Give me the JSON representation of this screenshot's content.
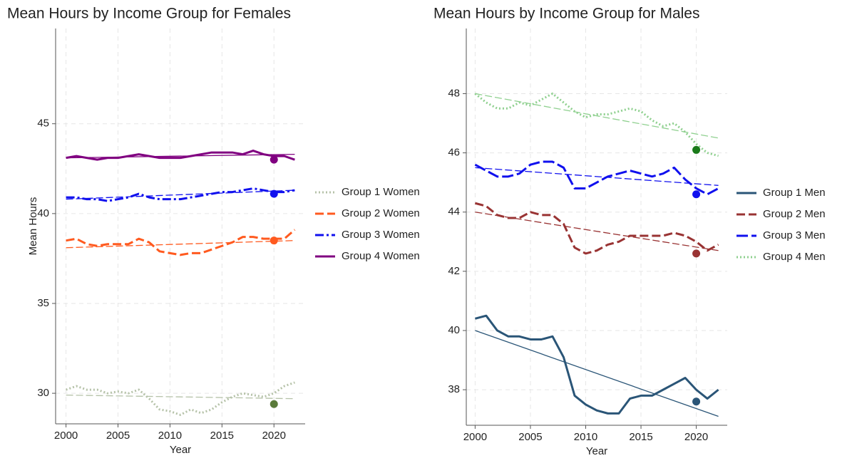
{
  "chart_data": [
    {
      "type": "line",
      "title": "Mean Hours by Income Group for Females",
      "ylabel": "Mean Hours",
      "xlabel": "Year",
      "x": [
        2000,
        2001,
        2002,
        2003,
        2004,
        2005,
        2006,
        2007,
        2008,
        2009,
        2010,
        2011,
        2012,
        2013,
        2014,
        2015,
        2016,
        2017,
        2018,
        2019,
        2020,
        2021,
        2022
      ],
      "xlim": [
        1999,
        2023
      ],
      "xticks": [
        2000,
        2005,
        2010,
        2015,
        2020
      ],
      "ylim": [
        28.3,
        50.3
      ],
      "yticks": [
        30,
        35,
        40,
        45
      ],
      "grid": true,
      "legend": "right",
      "series": [
        {
          "name": "Group 1 Women",
          "color": "#b5c2a8",
          "line_style": "dotted",
          "values": [
            30.2,
            30.4,
            30.2,
            30.2,
            30.0,
            30.1,
            30.0,
            30.2,
            29.7,
            29.1,
            29.0,
            28.8,
            29.1,
            28.9,
            29.1,
            29.5,
            29.8,
            30.0,
            29.9,
            29.8,
            30.0,
            30.4,
            30.6
          ],
          "trend": {
            "x": [
              2000,
              2022
            ],
            "values": [
              29.9,
              29.7
            ]
          },
          "marker": {
            "x": 2020,
            "value": 29.4,
            "color": "#5a7a3a"
          }
        },
        {
          "name": "Group 2 Women",
          "color": "#ff5a1f",
          "line_style": "dashed",
          "values": [
            38.5,
            38.6,
            38.3,
            38.2,
            38.3,
            38.3,
            38.3,
            38.6,
            38.4,
            37.9,
            37.8,
            37.7,
            37.8,
            37.8,
            38.0,
            38.2,
            38.4,
            38.7,
            38.7,
            38.6,
            38.6,
            38.6,
            39.1
          ],
          "trend": {
            "x": [
              2000,
              2022
            ],
            "values": [
              38.1,
              38.5
            ]
          },
          "marker": {
            "x": 2020,
            "value": 38.5,
            "color": "#ff5a1f"
          }
        },
        {
          "name": "Group 3 Women",
          "color": "#1010ee",
          "line_style": "dashdot",
          "values": [
            40.9,
            40.9,
            40.8,
            40.8,
            40.7,
            40.8,
            40.9,
            41.1,
            40.9,
            40.8,
            40.8,
            40.8,
            40.9,
            41.0,
            41.1,
            41.2,
            41.2,
            41.3,
            41.4,
            41.3,
            41.2,
            41.2,
            41.3
          ],
          "trend": {
            "x": [
              2000,
              2022
            ],
            "values": [
              40.8,
              41.3
            ]
          },
          "marker": {
            "x": 2020,
            "value": 41.1,
            "color": "#1010ee"
          }
        },
        {
          "name": "Group 4 Women",
          "color": "#800080",
          "line_style": "solid",
          "values": [
            43.1,
            43.2,
            43.1,
            43.0,
            43.1,
            43.1,
            43.2,
            43.3,
            43.2,
            43.1,
            43.1,
            43.1,
            43.2,
            43.3,
            43.4,
            43.4,
            43.4,
            43.3,
            43.5,
            43.3,
            43.2,
            43.2,
            43.0
          ],
          "trend": {
            "x": [
              2000,
              2022
            ],
            "values": [
              43.1,
              43.3
            ]
          },
          "marker": {
            "x": 2020,
            "value": 43.0,
            "color": "#800080"
          }
        }
      ]
    },
    {
      "type": "line",
      "title": "Mean Hours by Income Group for Males",
      "xlabel": "Year",
      "x": [
        2000,
        2001,
        2002,
        2003,
        2004,
        2005,
        2006,
        2007,
        2008,
        2009,
        2010,
        2011,
        2012,
        2013,
        2014,
        2015,
        2016,
        2017,
        2018,
        2019,
        2020,
        2021,
        2022
      ],
      "xlim": [
        1999.2,
        2022.8
      ],
      "xticks": [
        2000,
        2005,
        2010,
        2015,
        2020
      ],
      "ylim": [
        36.8,
        50.2
      ],
      "yticks": [
        38,
        40,
        42,
        44,
        46,
        48
      ],
      "grid": true,
      "legend": "right",
      "series": [
        {
          "name": "Group 1 Men",
          "color": "#2a5577",
          "line_style": "solid",
          "values": [
            40.4,
            40.5,
            40.0,
            39.8,
            39.8,
            39.7,
            39.7,
            39.8,
            39.1,
            37.8,
            37.5,
            37.3,
            37.2,
            37.2,
            37.7,
            37.8,
            37.8,
            38.0,
            38.2,
            38.4,
            38.0,
            37.7,
            38.0
          ],
          "trend": {
            "x": [
              2000,
              2022
            ],
            "values": [
              40.0,
              37.1
            ]
          },
          "marker": {
            "x": 2020,
            "value": 37.6,
            "color": "#2a5577"
          }
        },
        {
          "name": "Group 2 Men",
          "color": "#993333",
          "line_style": "dashed",
          "values": [
            44.3,
            44.2,
            43.9,
            43.8,
            43.8,
            44.0,
            43.9,
            43.9,
            43.6,
            42.8,
            42.6,
            42.7,
            42.9,
            43.0,
            43.2,
            43.2,
            43.2,
            43.2,
            43.3,
            43.2,
            43.0,
            42.7,
            42.9
          ],
          "trend": {
            "x": [
              2000,
              2022
            ],
            "values": [
              44.0,
              42.7
            ]
          },
          "marker": {
            "x": 2020,
            "value": 42.6,
            "color": "#993333"
          }
        },
        {
          "name": "Group 3 Men",
          "color": "#1010ee",
          "line_style": "longdash",
          "values": [
            45.6,
            45.4,
            45.2,
            45.2,
            45.3,
            45.6,
            45.7,
            45.7,
            45.5,
            44.8,
            44.8,
            45.0,
            45.2,
            45.3,
            45.4,
            45.3,
            45.2,
            45.3,
            45.5,
            45.1,
            44.8,
            44.6,
            44.8
          ],
          "trend": {
            "x": [
              2000,
              2022
            ],
            "values": [
              45.5,
              44.9
            ]
          },
          "marker": {
            "x": 2020,
            "value": 44.6,
            "color": "#1010ee"
          }
        },
        {
          "name": "Group 4 Men",
          "color": "#8fd08f",
          "line_style": "dotted",
          "values": [
            48.0,
            47.7,
            47.5,
            47.5,
            47.7,
            47.6,
            47.8,
            48.0,
            47.7,
            47.4,
            47.2,
            47.3,
            47.3,
            47.4,
            47.5,
            47.4,
            47.1,
            46.9,
            47.0,
            46.7,
            46.3,
            46.0,
            45.9
          ],
          "trend": {
            "x": [
              2000,
              2022
            ],
            "values": [
              48.0,
              46.5
            ]
          },
          "marker": {
            "x": 2020,
            "value": 46.1,
            "color": "#1a7a1a"
          }
        }
      ]
    }
  ]
}
